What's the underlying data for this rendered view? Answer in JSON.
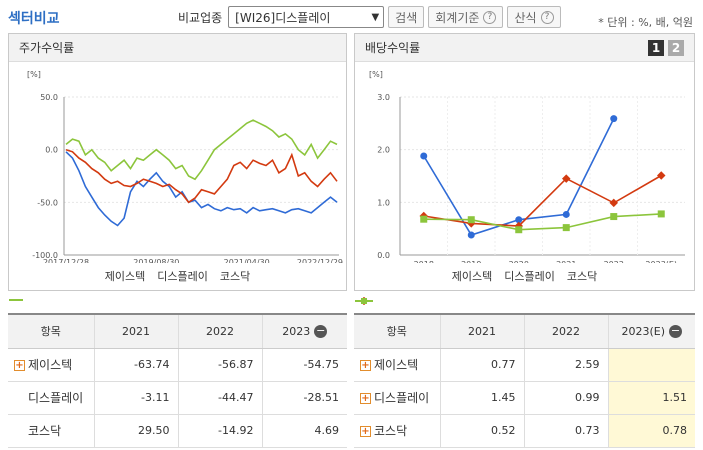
{
  "header": {
    "title": "섹터비교",
    "filter_label": "비교업종",
    "select_value": "[WI26]디스플레이",
    "search_button": "검색",
    "accounting_button": "회계기준",
    "formula_button": "산식",
    "help_glyph": "?",
    "unit_text": "* 단위 : %, 배, 억원"
  },
  "colors": {
    "jeisu": "#2f6bd6",
    "display": "#d33a10",
    "kosdaq": "#8cc53c"
  },
  "left_panel": {
    "title": "주가수익률",
    "unit": "[%]",
    "legend": [
      "제이스텍",
      "디스플레이",
      "코스닥"
    ]
  },
  "right_panel": {
    "title": "배당수익률",
    "unit": "[%]",
    "tabs": [
      "1",
      "2"
    ],
    "legend": [
      "제이스텍",
      "디스플레이",
      "코스닥"
    ]
  },
  "chart_data": [
    {
      "type": "line",
      "title": "주가수익률",
      "ylim": [
        -100,
        50
      ],
      "yticks": [
        "50.0",
        "0.0",
        "-50.0",
        "-100.0"
      ],
      "x_tick_labels": [
        "2017/12/28",
        "2019/08/30",
        "2021/04/30",
        "2022/12/29"
      ],
      "series": [
        {
          "name": "제이스텍",
          "values": [
            -2,
            -8,
            -20,
            -35,
            -45,
            -55,
            -62,
            -68,
            -72,
            -65,
            -40,
            -30,
            -35,
            -28,
            -22,
            -30,
            -35,
            -45,
            -40,
            -50,
            -48,
            -55,
            -52,
            -56,
            -58,
            -55,
            -57,
            -56,
            -60,
            -55,
            -58,
            -57,
            -56,
            -58,
            -60,
            -57,
            -56,
            -58,
            -60,
            -55,
            -50,
            -45,
            -50
          ]
        },
        {
          "name": "디스플레이",
          "values": [
            0,
            -2,
            -8,
            -12,
            -18,
            -22,
            -28,
            -32,
            -30,
            -34,
            -35,
            -32,
            -28,
            -30,
            -32,
            -35,
            -33,
            -38,
            -42,
            -50,
            -46,
            -38,
            -40,
            -42,
            -35,
            -28,
            -15,
            -12,
            -18,
            -10,
            -13,
            -15,
            -10,
            -22,
            -18,
            -5,
            -25,
            -22,
            -30,
            -35,
            -28,
            -22,
            -30
          ]
        },
        {
          "name": "코스닥",
          "values": [
            5,
            10,
            8,
            -5,
            0,
            -8,
            -12,
            -20,
            -15,
            -10,
            -18,
            -8,
            -10,
            -5,
            0,
            -5,
            -10,
            -18,
            -15,
            -25,
            -28,
            -20,
            -10,
            0,
            5,
            10,
            15,
            20,
            25,
            28,
            25,
            22,
            18,
            12,
            15,
            10,
            0,
            -5,
            5,
            -8,
            0,
            8,
            5
          ]
        }
      ]
    },
    {
      "type": "line",
      "title": "배당수익률",
      "ylim": [
        0,
        3
      ],
      "yticks": [
        "3.0",
        "2.0",
        "1.0",
        "0.0"
      ],
      "categories": [
        "2018",
        "2019",
        "2020",
        "2021",
        "2022",
        "2023(E)"
      ],
      "series": [
        {
          "name": "제이스텍",
          "values": [
            1.88,
            0.38,
            0.67,
            0.77,
            2.59,
            null
          ]
        },
        {
          "name": "디스플레이",
          "values": [
            0.74,
            0.6,
            0.55,
            1.45,
            0.99,
            1.51
          ]
        },
        {
          "name": "코스닥",
          "values": [
            0.68,
            0.67,
            0.48,
            0.52,
            0.73,
            0.78
          ]
        }
      ]
    }
  ],
  "left_table": {
    "headers": [
      "항목",
      "2021",
      "2022",
      "2023"
    ],
    "rows": [
      {
        "name": "제이스텍",
        "v": [
          "-63.74",
          "-56.87",
          "-54.75"
        ]
      },
      {
        "name": "디스플레이",
        "v": [
          "-3.11",
          "-44.47",
          "-28.51"
        ]
      },
      {
        "name": "코스닥",
        "v": [
          "29.50",
          "-14.92",
          "4.69"
        ]
      }
    ]
  },
  "right_table": {
    "headers": [
      "항목",
      "2021",
      "2022",
      "2023(E)"
    ],
    "rows": [
      {
        "name": "제이스텍",
        "v": [
          "0.77",
          "2.59",
          ""
        ]
      },
      {
        "name": "디스플레이",
        "v": [
          "1.45",
          "0.99",
          "1.51"
        ]
      },
      {
        "name": "코스닥",
        "v": [
          "0.52",
          "0.73",
          "0.78"
        ]
      }
    ]
  },
  "row_icon": "+",
  "collapse_glyph": "−"
}
